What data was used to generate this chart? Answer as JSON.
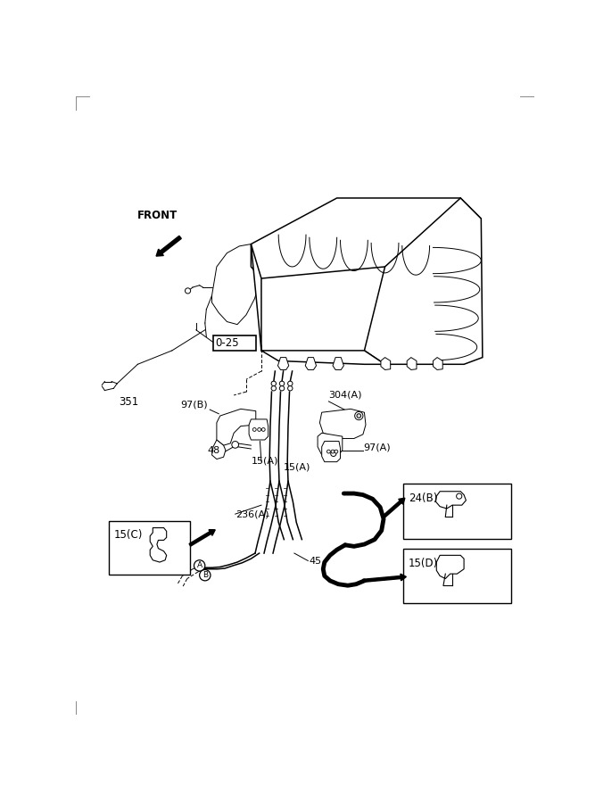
{
  "bg_color": "#ffffff",
  "line_color": "#000000",
  "fig_width": 6.67,
  "fig_height": 9.0,
  "dpi": 100,
  "labels": {
    "front_text": "FRONT",
    "part_0_25": "0-25",
    "part_351": "351",
    "part_97B": "97(B)",
    "part_48": "48",
    "part_15A_1": "15(A)",
    "part_15A_2": "15(A)",
    "part_304A": "304(A)",
    "part_97A": "97(A)",
    "part_236A": "236(A)",
    "part_45": "45",
    "part_15C": "15(C)",
    "part_24B": "24(B)",
    "part_15D": "15(D)",
    "circle_A": "A",
    "circle_B": "B"
  }
}
